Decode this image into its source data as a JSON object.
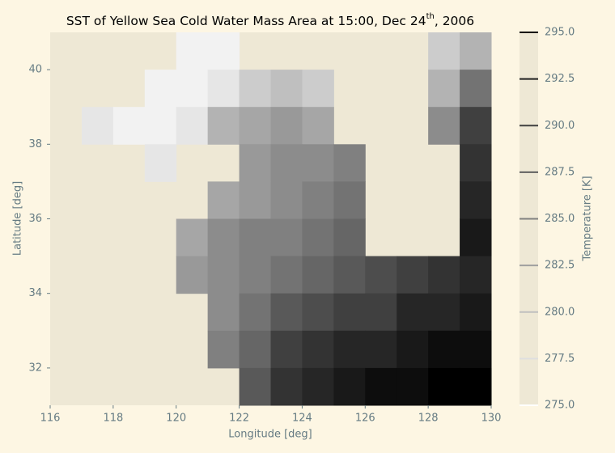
{
  "chart_data": {
    "type": "heatmap",
    "title": [
      "SST of Yellow Sea Cold Water Mass Area at 15:00, Dec 24",
      "th",
      ", 2006"
    ],
    "xlabel": "Longitude [deg]",
    "ylabel": "Latitude  [deg]",
    "xlim": [
      116,
      130
    ],
    "ylim": [
      31,
      41
    ],
    "xticks": [
      116,
      118,
      120,
      122,
      124,
      126,
      128,
      130
    ],
    "yticks": [
      32,
      34,
      36,
      38,
      40
    ],
    "lons": [
      116.5,
      117.5,
      118.5,
      119.5,
      120.5,
      121.5,
      122.5,
      123.5,
      124.5,
      125.5,
      126.5,
      127.5,
      128.5,
      129.5
    ],
    "lats": [
      40.5,
      39.5,
      38.5,
      37.5,
      36.5,
      35.5,
      34.5,
      33.5,
      32.5,
      31.5
    ],
    "values": [
      [
        null,
        null,
        null,
        null,
        276,
        276,
        null,
        null,
        null,
        null,
        null,
        null,
        279,
        281
      ],
      [
        null,
        null,
        null,
        276,
        276,
        277,
        279,
        280,
        279,
        null,
        null,
        null,
        281,
        286
      ],
      [
        null,
        277,
        276,
        276,
        277,
        281,
        282,
        283,
        282,
        null,
        null,
        null,
        284,
        290
      ],
      [
        null,
        null,
        null,
        277,
        null,
        null,
        283,
        284,
        284,
        285,
        null,
        null,
        null,
        291
      ],
      [
        null,
        null,
        null,
        null,
        null,
        282,
        283,
        284,
        285,
        286,
        null,
        null,
        null,
        292
      ],
      [
        null,
        null,
        null,
        null,
        282,
        284,
        285,
        285,
        286,
        287,
        null,
        null,
        null,
        293
      ],
      [
        null,
        null,
        null,
        null,
        283,
        284,
        285,
        286,
        287,
        288,
        289,
        290,
        291,
        292
      ],
      [
        null,
        null,
        null,
        null,
        null,
        284,
        286,
        288,
        289,
        290,
        290,
        292,
        292,
        293
      ],
      [
        null,
        null,
        null,
        null,
        null,
        285,
        287,
        290,
        291,
        292,
        292,
        293,
        294,
        294
      ],
      [
        null,
        null,
        null,
        null,
        null,
        null,
        288,
        291,
        292,
        293,
        294,
        294,
        295,
        295
      ]
    ],
    "colormap": "gray_r",
    "colorbar": {
      "label": "Temperature [K]",
      "lim": [
        275,
        295
      ],
      "ticks": [
        {
          "value": 275,
          "label": "275.0"
        },
        {
          "value": 277.5,
          "label": "277.5"
        },
        {
          "value": 280,
          "label": "280.0"
        },
        {
          "value": 282.5,
          "label": "282.5"
        },
        {
          "value": 285,
          "label": "285.0"
        },
        {
          "value": 287.5,
          "label": "287.5"
        },
        {
          "value": 290,
          "label": "290.0"
        },
        {
          "value": 292.5,
          "label": "292.5"
        },
        {
          "value": 295,
          "label": "295.0"
        }
      ]
    }
  }
}
